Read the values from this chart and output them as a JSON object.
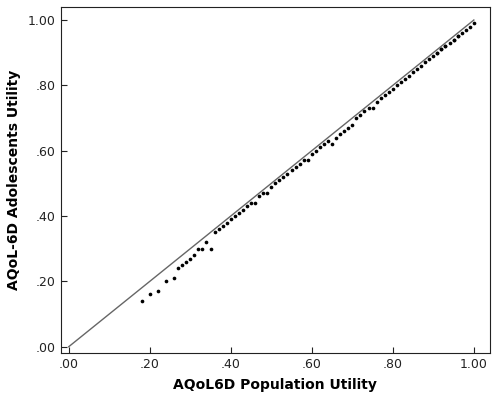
{
  "xlabel": "AQoL6D Population Utility",
  "ylabel": "AQoL-6D Adolescents Utility",
  "xlim": [
    -0.02,
    1.04
  ],
  "ylim": [
    -0.02,
    1.04
  ],
  "xticks": [
    0.0,
    0.2,
    0.4,
    0.6,
    0.8,
    1.0
  ],
  "yticks": [
    0.0,
    0.2,
    0.4,
    0.6,
    0.8,
    1.0
  ],
  "xtick_labels": [
    ".00",
    ".20",
    ".40",
    ".60",
    ".80",
    "1.00"
  ],
  "ytick_labels": [
    ".00",
    ".20",
    ".40",
    ".60",
    ".80",
    "1.00"
  ],
  "scatter_color": "#000000",
  "scatter_size": 7,
  "line_color": "#666666",
  "line_width": 1.0,
  "bg_color": "#ffffff",
  "xlabel_fontsize": 10,
  "ylabel_fontsize": 10,
  "tick_fontsize": 9,
  "xlabel_bold": true,
  "ylabel_bold": true,
  "points_x": [
    0.18,
    0.2,
    0.22,
    0.24,
    0.26,
    0.27,
    0.28,
    0.29,
    0.3,
    0.31,
    0.32,
    0.33,
    0.34,
    0.35,
    0.36,
    0.37,
    0.38,
    0.39,
    0.4,
    0.41,
    0.42,
    0.43,
    0.44,
    0.45,
    0.46,
    0.47,
    0.48,
    0.49,
    0.5,
    0.51,
    0.52,
    0.53,
    0.54,
    0.55,
    0.56,
    0.57,
    0.58,
    0.59,
    0.6,
    0.61,
    0.62,
    0.63,
    0.64,
    0.65,
    0.66,
    0.67,
    0.68,
    0.69,
    0.7,
    0.71,
    0.72,
    0.73,
    0.74,
    0.75,
    0.76,
    0.77,
    0.78,
    0.79,
    0.8,
    0.81,
    0.82,
    0.83,
    0.84,
    0.85,
    0.86,
    0.87,
    0.88,
    0.89,
    0.9,
    0.91,
    0.92,
    0.93,
    0.94,
    0.95,
    0.96,
    0.97,
    0.98,
    0.99,
    1.0,
    0.91,
    0.92,
    0.93,
    0.95,
    0.96
  ],
  "points_y": [
    0.14,
    0.16,
    0.17,
    0.2,
    0.21,
    0.24,
    0.25,
    0.26,
    0.27,
    0.28,
    0.3,
    0.3,
    0.32,
    0.3,
    0.35,
    0.36,
    0.37,
    0.38,
    0.39,
    0.4,
    0.41,
    0.42,
    0.43,
    0.44,
    0.44,
    0.46,
    0.47,
    0.47,
    0.49,
    0.5,
    0.51,
    0.52,
    0.53,
    0.54,
    0.55,
    0.56,
    0.57,
    0.57,
    0.59,
    0.6,
    0.61,
    0.62,
    0.63,
    0.62,
    0.64,
    0.65,
    0.66,
    0.67,
    0.68,
    0.7,
    0.71,
    0.72,
    0.73,
    0.73,
    0.75,
    0.76,
    0.77,
    0.78,
    0.79,
    0.8,
    0.81,
    0.82,
    0.83,
    0.84,
    0.85,
    0.86,
    0.87,
    0.88,
    0.89,
    0.9,
    0.91,
    0.92,
    0.93,
    0.94,
    0.95,
    0.96,
    0.97,
    0.98,
    0.99,
    0.9,
    0.91,
    0.92,
    0.94,
    0.95
  ]
}
